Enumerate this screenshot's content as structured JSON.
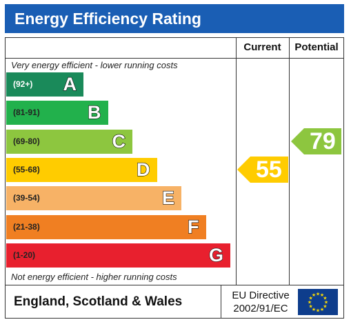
{
  "title": "Energy Efficiency Rating",
  "columns": {
    "current": "Current",
    "potential": "Potential"
  },
  "captions": {
    "top": "Very energy efficient - lower running costs",
    "bottom": "Not energy efficient - higher running costs"
  },
  "footer": {
    "country": "England, Scotland & Wales",
    "directive_line1": "EU Directive",
    "directive_line2": "2002/91/EC"
  },
  "chart_data": {
    "type": "bar",
    "categories": [
      "(92+)",
      "(81-91)",
      "(69-80)",
      "(55-68)",
      "(39-54)",
      "(21-38)",
      "(1-20)"
    ],
    "bands": [
      {
        "range": "(92+)",
        "letter": "A",
        "color": "#1a8a5a"
      },
      {
        "range": "(81-91)",
        "letter": "B",
        "color": "#22b14c"
      },
      {
        "range": "(69-80)",
        "letter": "C",
        "color": "#8dc63f"
      },
      {
        "range": "(55-68)",
        "letter": "D",
        "color": "#ffcc00"
      },
      {
        "range": "(39-54)",
        "letter": "E",
        "color": "#f7b266"
      },
      {
        "range": "(21-38)",
        "letter": "F",
        "color": "#f07f22"
      },
      {
        "range": "(1-20)",
        "letter": "G",
        "color": "#e8202e"
      }
    ],
    "current": {
      "value": 55,
      "band": "D",
      "color": "#ffcc00"
    },
    "potential": {
      "value": 79,
      "band": "C",
      "color": "#8dc63f"
    }
  }
}
